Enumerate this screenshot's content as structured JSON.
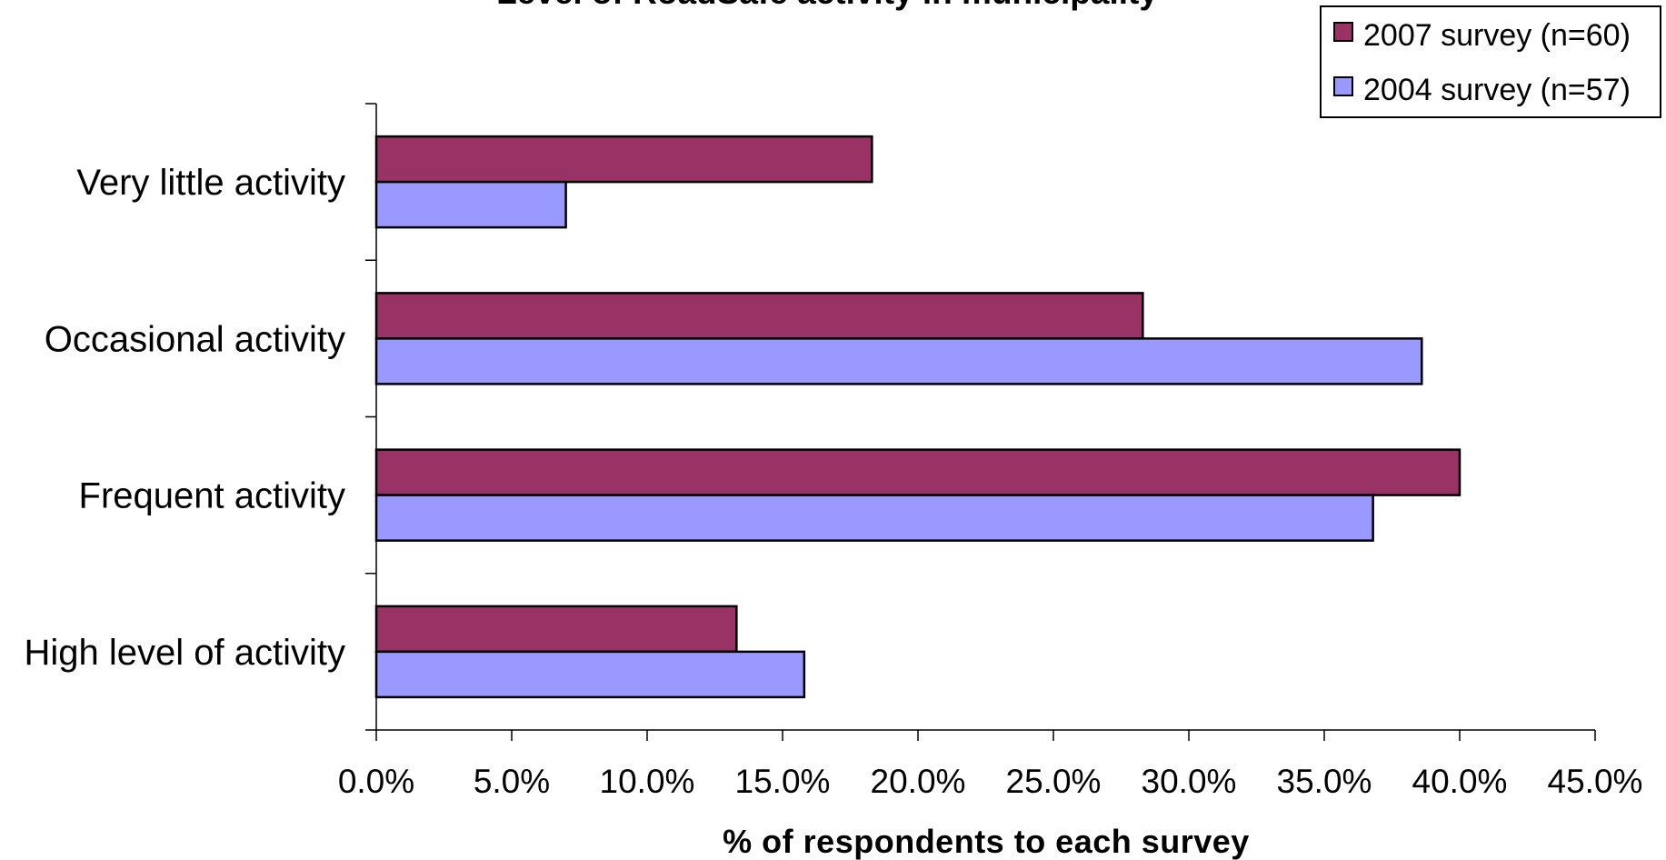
{
  "chart_data": {
    "type": "bar",
    "orientation": "horizontal",
    "title": "Level of RoadSafe activity in municipality",
    "xlabel": "% of respondents to each survey",
    "ylabel": "",
    "categories": [
      "Very little activity",
      "Occasional activity",
      "Frequent activity",
      "High level of activity"
    ],
    "series": [
      {
        "name": "2007 survey (n=60)",
        "color": "#993366",
        "values": [
          18.3,
          28.3,
          40.0,
          13.3
        ]
      },
      {
        "name": "2004 survey (n=57)",
        "color": "#9999FF",
        "values": [
          7.0,
          38.6,
          36.8,
          15.8
        ]
      }
    ],
    "xlim": [
      0,
      45
    ],
    "x_ticks": [
      "0.0%",
      "5.0%",
      "10.0%",
      "15.0%",
      "20.0%",
      "25.0%",
      "30.0%",
      "35.0%",
      "40.0%",
      "45.0%"
    ],
    "grid": false,
    "legend_position": "top-right"
  }
}
